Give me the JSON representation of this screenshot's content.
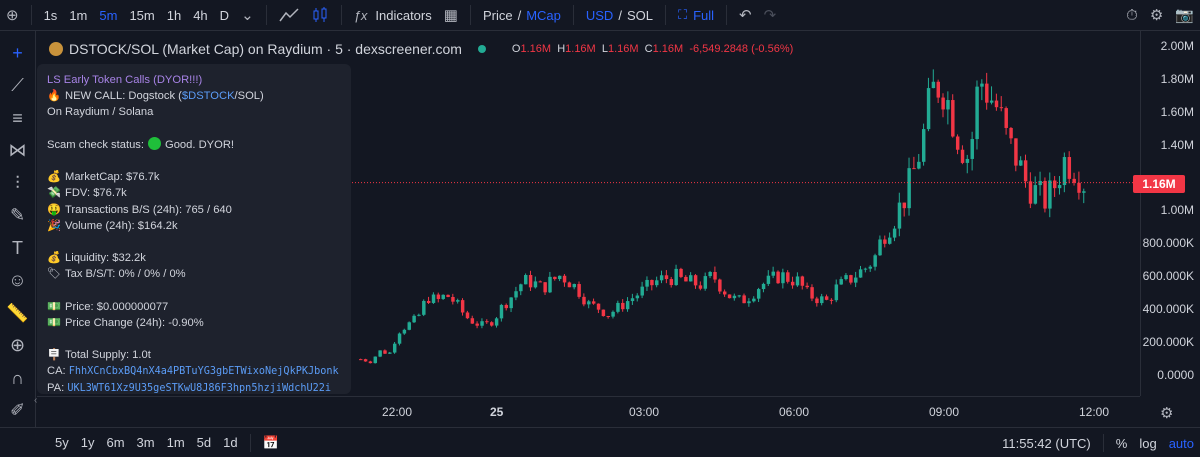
{
  "toolbar": {
    "timeframes": [
      "1s",
      "1m",
      "5m",
      "15m",
      "1h",
      "4h",
      "D"
    ],
    "active_timeframe": "5m",
    "indicators_label": "Indicators",
    "price_label": "Price",
    "mcap_label": "MCap",
    "usd_label": "USD",
    "sol_label": "SOL",
    "full_label": "Full",
    "icons": [
      "plus-circle-icon",
      "chevron-down-icon",
      "line-chart-icon",
      "candles-icon",
      "fx-icon",
      "grid-icon",
      "undo-icon",
      "redo-icon",
      "alarm-icon",
      "settings-icon",
      "camera-icon"
    ]
  },
  "legend": {
    "title": "DSTOCK/SOL (Market Cap) on Raydium · 5 · dexscreener.com",
    "o_label": "O",
    "o_value": "1.16M",
    "h_label": "H",
    "h_value": "1.16M",
    "l_label": "L",
    "l_value": "1.16M",
    "c_label": "C",
    "c_value": "1.16M",
    "change": "-6,549.2848 (-0.56%)"
  },
  "panel": {
    "title": "LS Early Token Calls (DYOR!!!)",
    "new_call_prefix": "NEW CALL: Dogstock (",
    "new_call_ticker": "$DSTOCK",
    "new_call_suffix": "/SOL)",
    "on_label": "On",
    "on_value": "Raydium / Solana",
    "scam_label": "Scam check status:",
    "scam_value": "Good. DYOR!",
    "marketcap_label": "MarketCap:",
    "marketcap_value": "$76.7k",
    "fdv_label": "FDV:",
    "fdv_value": "$76.7k",
    "tx_label": "Transactions B/S (24h):",
    "tx_value": "765 / 640",
    "volume_label": "Volume (24h):",
    "volume_value": "$164.2k",
    "liquidity_label": "Liquidity:",
    "liquidity_value": "$32.2k",
    "tax_label": "Tax B/S/T:",
    "tax_value": "0% / 0% / 0%",
    "price_label": "Price:",
    "price_value": "$0.000000077",
    "pricechange_label": "Price Change (24h):",
    "pricechange_value": "-0.90%",
    "supply_label": "Total Supply:",
    "supply_value": "1.0t",
    "ca_label": "CA:",
    "ca_value": "FhhXCnCbxBQ4nX4a4PBTuYG3gbETWixoNejQkPKJbonk",
    "pa_label": "PA:",
    "pa_value": "UKL3WT61Xz9U35geSTKwU8J86F3hpn5hzjiWdchU22i"
  },
  "price_scale": {
    "ticks": [
      "2.00M",
      "1.80M",
      "1.60M",
      "1.40M",
      "1.00M",
      "800.000K",
      "600.000K",
      "400.000K",
      "200.000K",
      "0.0000"
    ],
    "current_price": "1.16M"
  },
  "time_scale": {
    "ticks": [
      "22:00",
      "25",
      "03:00",
      "06:00",
      "09:00",
      "12:00"
    ]
  },
  "bottom": {
    "ranges": [
      "5y",
      "1y",
      "6m",
      "3m",
      "1m",
      "5d",
      "1d"
    ],
    "clock": "11:55:42 (UTC)",
    "percent_label": "%",
    "log_label": "log",
    "auto_label": "auto"
  },
  "colors": {
    "background": "#131722",
    "up": "#22ab94",
    "down": "#f23645",
    "accent": "#2962ff",
    "panel": "#1e222d"
  },
  "chart_data": {
    "type": "candlestick",
    "unit": "market cap (USD)",
    "ylim": [
      0,
      2000000
    ],
    "x_ticks": [
      "22:00",
      "25",
      "03:00",
      "06:00",
      "09:00",
      "12:00"
    ],
    "series": [
      {
        "values": [
          90000,
          70000,
          140000,
          120000,
          260000,
          300000,
          340000,
          470000,
          440000,
          480000,
          430000,
          350000,
          310000,
          290000,
          330000,
          420000,
          480000,
          560000,
          560000,
          520000,
          560000,
          600000,
          560000,
          500000,
          420000,
          400000,
          360000,
          400000,
          440000,
          480000,
          520000,
          560000,
          580000,
          590000,
          560000,
          550000,
          540000,
          600000,
          520000,
          460000,
          440000,
          480000,
          540000,
          560000,
          600000,
          580000,
          560000,
          480000,
          460000,
          440000,
          520000,
          560000,
          600000,
          640000,
          700000,
          860000,
          940000,
          1050000,
          1200000,
          1400000,
          1700000,
          1780000,
          1600000,
          1400000,
          1300000,
          1800000,
          1700000,
          1600000,
          1400000,
          1300000,
          1150000,
          1100000,
          1050000,
          1150000,
          1300000,
          1250000,
          1160000
        ]
      }
    ],
    "last_price": 1160000
  }
}
